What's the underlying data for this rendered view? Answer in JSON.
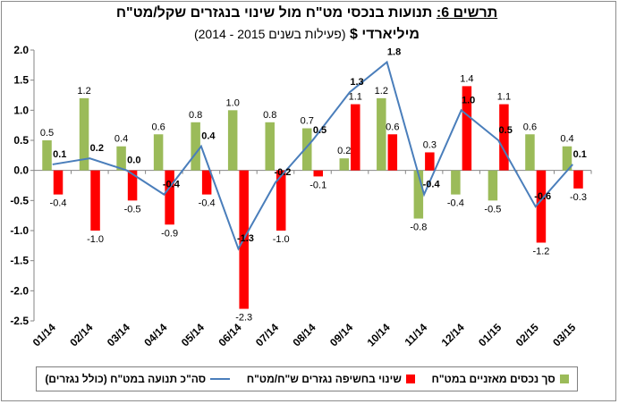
{
  "title": {
    "figure_label": "תרשים 6:",
    "text": "תנועות בנכסי מט\"ח מול שינוי בנגזרים שקל/מט\"ח",
    "unit": "מיליארדי $",
    "period": "(פעילות בשנים 2015 - 2014)"
  },
  "chart_data": {
    "type": "bar",
    "categories": [
      "01/14",
      "02/14",
      "03/14",
      "04/14",
      "05/14",
      "06/14",
      "07/14",
      "08/14",
      "09/14",
      "10/14",
      "11/14",
      "12/14",
      "01/15",
      "02/15",
      "03/15"
    ],
    "series": [
      {
        "name": "סך נכסים מאזניים במט\"ח",
        "type": "bar",
        "color": "#9bbb59",
        "values": [
          0.5,
          1.2,
          0.4,
          0.6,
          0.8,
          1.0,
          0.8,
          0.7,
          0.2,
          1.2,
          -0.8,
          -0.4,
          -0.5,
          0.6,
          0.4
        ]
      },
      {
        "name": "שינוי בחשיפה נגזרים ש\"ח/מט\"ח",
        "type": "bar",
        "color": "#ff0000",
        "values": [
          -0.4,
          -1.0,
          -0.5,
          -0.9,
          -0.4,
          -2.3,
          -1.0,
          -0.1,
          1.1,
          0.6,
          0.3,
          1.4,
          1.1,
          -1.2,
          -0.3
        ]
      },
      {
        "name": "סה\"כ תנועה במט\"ח (כולל נגזרים)",
        "type": "line",
        "color": "#4a7ebb",
        "values": [
          0.1,
          0.2,
          0.0,
          -0.4,
          0.4,
          -1.3,
          -0.2,
          0.5,
          1.3,
          1.8,
          -0.4,
          1.0,
          0.5,
          -0.6,
          0.1
        ]
      }
    ],
    "bar_labels": [
      [
        "0.5",
        "1.2",
        "0.4",
        "0.6",
        "0.8",
        "1.0",
        "0.8",
        "0.7",
        "0.2",
        "1.2",
        "-0.8",
        "-0.4",
        "-0.5",
        "0.6",
        "0.4"
      ],
      [
        "-0.4",
        "-1.0",
        "-0.5",
        "-0.9",
        "-0.4",
        "-2.3",
        "-1.0",
        "-0.1",
        "1.1",
        "0.6",
        "0.3",
        "1.4",
        "1.1",
        "-1.2",
        "-0.3"
      ]
    ],
    "line_labels": [
      "0.1",
      "0.2",
      "0.0",
      "-0.4",
      "0.4",
      "-1.3",
      "-0.2",
      "0.5",
      "1.3",
      "1.8",
      "-0.4",
      "1.0",
      "0.5",
      "-0.6",
      "0.1"
    ],
    "ylim": [
      -2.5,
      2.0
    ],
    "yticks": [
      "2.0",
      "1.5",
      "1.0",
      "0.5",
      "0.0",
      "-0.5",
      "-1.0",
      "-1.5",
      "-2.0",
      "-2.5"
    ],
    "grid": false,
    "legend_position": "bottom"
  }
}
